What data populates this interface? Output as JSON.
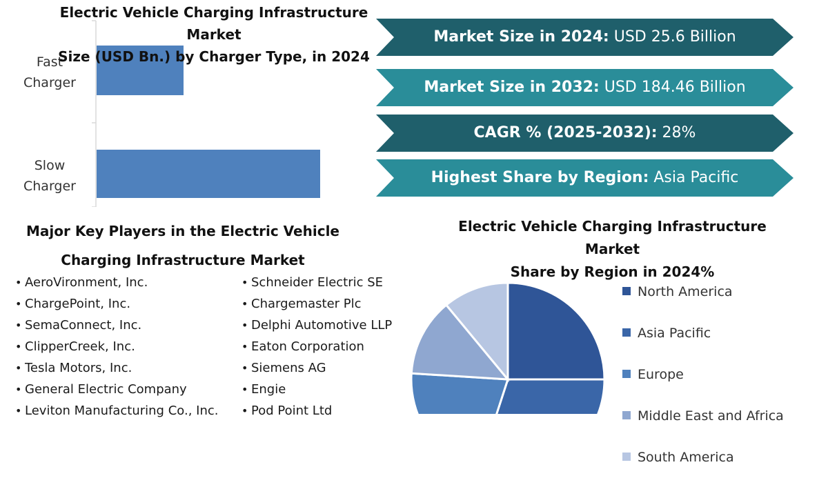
{
  "bar_chart": {
    "title_lines": [
      "Electric Vehicle Charging Infrastructure",
      "Market",
      "Size (USD Bn.) by Charger Type, in 2024"
    ],
    "bar_color": "#4f81bd"
  },
  "banners": [
    {
      "bold": "Market Size in 2024:",
      "value": " USD 25.6 Billion",
      "color": "#1f5f6b"
    },
    {
      "bold": "Market Size in 2032:",
      "value": " USD 184.46 Billion",
      "color": "#2a8d99"
    },
    {
      "bold": "CAGR % (2025-2032):",
      "value": " 28%",
      "color": "#1f5f6b"
    },
    {
      "bold": "Highest Share by Region:",
      "value": " Asia Pacific",
      "color": "#2a8d99"
    }
  ],
  "players": {
    "title_lines": [
      "Major Key Players in the Electric Vehicle",
      "Charging Infrastructure Market"
    ],
    "bullet": "•",
    "col1": [
      "AeroVironment, Inc.",
      "ChargePoint, Inc.",
      "SemaConnect, Inc.",
      "ClipperCreek, Inc.",
      "Tesla Motors, Inc.",
      "General Electric Company",
      "Leviton Manufacturing Co., Inc."
    ],
    "col2": [
      "Schneider Electric SE",
      "Chargemaster Plc",
      "Delphi Automotive LLP",
      "Eaton Corporation",
      "Siemens AG",
      "Engie",
      "Pod Point Ltd"
    ]
  },
  "pie": {
    "title_lines": [
      "Electric Vehicle Charging Infrastructure",
      "Market",
      "Share by Region in 2024%"
    ]
  },
  "chart_data": [
    {
      "type": "bar",
      "orientation": "horizontal",
      "title": "Electric Vehicle Charging Infrastructure Market Size (USD Bn.) by Charger Type, in 2024",
      "categories": [
        "Fast Charger",
        "Slow Charger"
      ],
      "category_lines": [
        [
          "Fast",
          "Charger"
        ],
        [
          "Slow",
          "Charger"
        ]
      ],
      "values": [
        6.3,
        16.2
      ],
      "xlim": [
        0,
        18
      ],
      "grid": false
    },
    {
      "type": "pie",
      "title": "Electric Vehicle Charging Infrastructure Market Share by Region in 2024%",
      "labels": [
        "North America",
        "Asia Pacific",
        "Europe",
        "Middle East and Africa",
        "South America"
      ],
      "values": [
        25,
        30,
        21,
        13,
        11
      ],
      "colors": [
        "#2f5597",
        "#3a66a8",
        "#4f81bd",
        "#8fa7d0",
        "#b7c6e2"
      ],
      "legend_position": "right"
    }
  ]
}
